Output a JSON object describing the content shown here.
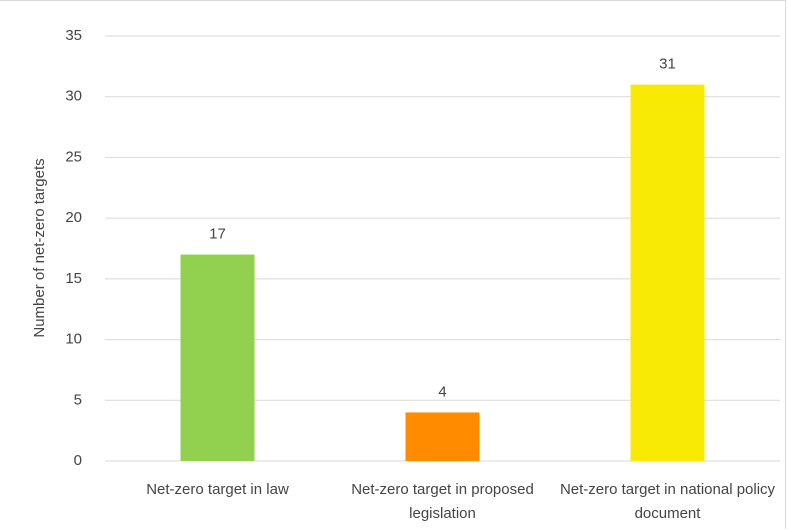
{
  "chart_data": {
    "type": "bar",
    "y_label": "Number of net-zero targets",
    "categories": [
      "Net-zero target in law",
      "Net-zero target in proposed legislation",
      "Net-zero target in national policy document"
    ],
    "values": [
      17,
      4,
      31
    ],
    "colors": [
      "#92d050",
      "#ff8c00",
      "#f9ea06"
    ],
    "ylim": [
      0,
      35
    ],
    "yticks": [
      0,
      5,
      10,
      15,
      20,
      25,
      30,
      35
    ],
    "grid": true
  }
}
